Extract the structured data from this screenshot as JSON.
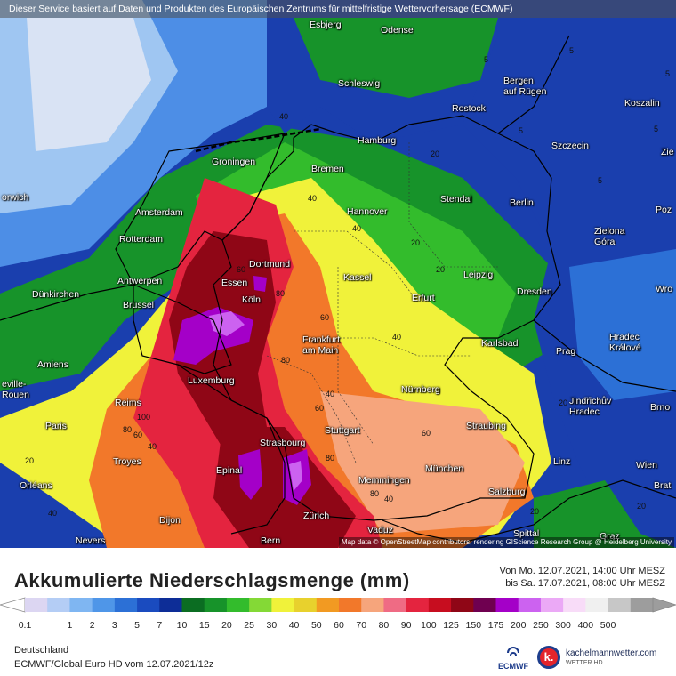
{
  "disclaimer": "Dieser Service basiert auf Daten und Produkten des Europäischen Zentrums für mittelfristige Wettervorhersage (ECMWF)",
  "attribution": "Map data © OpenStreetMap contributors, rendering GIScience Research Group @ Heidelberg University",
  "cities": {
    "esbjerg": "Esbjerg",
    "odense": "Odense",
    "schleswig": "Schleswig",
    "bergen": "Bergen\nauf Rügen",
    "rostock": "Rostock",
    "koszalin": "Koszalin",
    "hamburg": "Hamburg",
    "szczecin": "Szczecin",
    "groningen": "Groningen",
    "bremen": "Bremen",
    "norwich": "orwich",
    "amsterdam": "Amsterdam",
    "hannover": "Hannover",
    "stendal": "Stendal",
    "berlin": "Berlin",
    "rotterdam": "Rotterdam",
    "zielona": "Zielona\nGóra",
    "dortmund": "Dortmund",
    "essen": "Essen",
    "antwerpen": "Antwerpen",
    "kassel": "Kassel",
    "leipzig": "Leipzig",
    "dunkirchen": "Dünkirchen",
    "brussel": "Brüssel",
    "koln": "Köln",
    "erfurt": "Erfurt",
    "dresden": "Dresden",
    "frankfurt": "Frankfurt\nam Main",
    "karlsbad": "Karlsbad",
    "kralove": "Hradec\nKrálové",
    "amiens": "Amiens",
    "prag": "Prag",
    "luxemburg": "Luxemburg",
    "rouen": "eville-\nRouen",
    "nurnberg": "Nürnberg",
    "jindrichuv": "Jindřichův\nHradec",
    "brno": "Brno",
    "reims": "Reims",
    "paris": "Paris",
    "stuttgart": "Stuttgart",
    "straubing": "Straubing",
    "strasbourg": "Strasbourg",
    "troyes": "Troyes",
    "epinal": "Epinal",
    "munchen": "München",
    "linz": "Linz",
    "wien": "Wien",
    "orleans": "Orléans",
    "memmingen": "Memmingen",
    "salzburg": "Salzburg",
    "dijon": "Dijon",
    "zurich": "Zürich",
    "vaduz": "Vaduz",
    "nevers": "Nevers",
    "bern": "Bern",
    "spittal": "Spittal",
    "graz": "Graz",
    "poz": "Poz",
    "wro": "Wro",
    "zie": "Zie",
    "bra": "Brat"
  },
  "contours": {
    "c1": "5",
    "c2": "5",
    "c3": "5",
    "c4": "5",
    "c5": "5",
    "c6": "5",
    "c7": "40",
    "c8": "20",
    "c9": "40",
    "c10": "40",
    "c11": "20",
    "c12": "20",
    "c13": "60",
    "c14": "80",
    "c15": "60",
    "c16": "40",
    "c17": "40",
    "c18": "80",
    "c19": "60",
    "c20": "100",
    "c21": "60",
    "c22": "40",
    "c23": "20",
    "c24": "80",
    "c25": "80",
    "c26": "60",
    "c27": "80",
    "c28": "20",
    "c29": "40",
    "c30": "20",
    "c31": "40",
    "c32": "20"
  },
  "legend": {
    "title": "Akkumulierte Niederschlagsmenge (mm)",
    "period_from": "Von Mo. 12.07.2021, 14:00 Uhr MESZ",
    "period_to": "bis Sa. 17.07.2021, 08:00 Uhr MESZ",
    "ticks": [
      "0.1",
      "1",
      "2",
      "3",
      "5",
      "7",
      "10",
      "15",
      "20",
      "25",
      "30",
      "40",
      "50",
      "60",
      "70",
      "80",
      "90",
      "100",
      "125",
      "150",
      "175",
      "200",
      "250",
      "300",
      "400",
      "500"
    ],
    "colors": [
      "#dcd6f2",
      "#b4cdf5",
      "#7fb6f2",
      "#4f96e8",
      "#2c70d6",
      "#1a4bbf",
      "#0d2d97",
      "#0b6d22",
      "#17932a",
      "#33bc2c",
      "#84d936",
      "#f0f23a",
      "#e8d12d",
      "#f29a22",
      "#f2782a",
      "#f6a57c",
      "#ef6b84",
      "#e4243f",
      "#c70d1f",
      "#8f0616",
      "#6f0050",
      "#a400c8",
      "#cc62f0",
      "#eba9f6",
      "#f8dcf8",
      "#f0f0f0",
      "#c7c7c7",
      "#9d9d9d"
    ]
  },
  "footer": {
    "region": "Deutschland",
    "model": "ECMWF/Global Euro HD vom  12.07.2021/12z",
    "ecmwf": "ECMWF",
    "km_name": "kachelmannwetter.com",
    "km_sub": "WETTER HD",
    "km_mark": "k."
  }
}
